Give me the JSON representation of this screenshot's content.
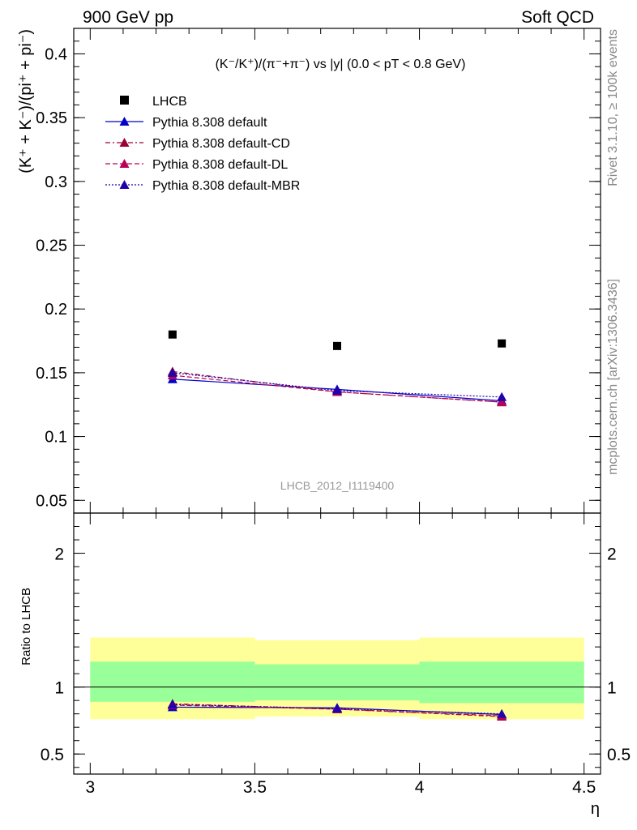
{
  "header": {
    "left": "900 GeV pp",
    "right": "Soft QCD"
  },
  "side_labels": {
    "top": "Rivet 3.1.10, ≥ 100k events",
    "bottom": "mcplots.cern.ch [arXiv:1306.3436]"
  },
  "watermark": "LHCB_2012_I1119400",
  "chart_data": [
    {
      "type": "scatter",
      "panel": "main",
      "title": "(K⁻/K⁺)/(π⁻+π⁻) vs |y| (0.0 < pT < 0.8 GeV)",
      "ylabel": "(K⁺ + K⁻)/(pi⁺ + pi⁻)",
      "xlim": [
        2.95,
        4.55
      ],
      "ylim": [
        0.04,
        0.42
      ],
      "yticks": [
        "0.05",
        "0.1",
        "0.15",
        "0.2",
        "0.25",
        "0.3",
        "0.35",
        "0.4"
      ],
      "x": [
        3.25,
        3.75,
        4.25
      ],
      "series": [
        {
          "name": "LHCB",
          "values": [
            0.18,
            0.171,
            0.173
          ],
          "color": "#000000",
          "marker": "square",
          "line": "none"
        },
        {
          "name": "Pythia 8.308 default",
          "values": [
            0.145,
            0.137,
            0.128
          ],
          "color": "#0000cc",
          "marker": "triangle",
          "line": "solid"
        },
        {
          "name": "Pythia 8.308 default-CD",
          "values": [
            0.151,
            0.135,
            0.127
          ],
          "color": "#990033",
          "marker": "triangle",
          "line": "dashdot"
        },
        {
          "name": "Pythia 8.308 default-DL",
          "values": [
            0.148,
            0.135,
            0.127
          ],
          "color": "#bb0055",
          "marker": "triangle",
          "line": "dashed"
        },
        {
          "name": "Pythia 8.308 default-MBR",
          "values": [
            0.15,
            0.136,
            0.131
          ],
          "color": "#2200aa",
          "marker": "triangle",
          "line": "dotted"
        }
      ],
      "legend_position": "top-left"
    },
    {
      "type": "line",
      "panel": "ratio",
      "ylabel": "Ratio to LHCB",
      "xlabel": "η",
      "xlim": [
        2.95,
        4.55
      ],
      "ylim": [
        0.35,
        2.3
      ],
      "yticks": [
        "0.5",
        "1",
        "2"
      ],
      "xticks": [
        "3",
        "3.5",
        "4",
        "4.5"
      ],
      "bins": [
        [
          3.0,
          3.5
        ],
        [
          3.5,
          4.0
        ],
        [
          4.0,
          4.5
        ]
      ],
      "band_inner": [
        [
          0.89,
          1.19
        ],
        [
          0.9,
          1.17
        ],
        [
          0.88,
          1.19
        ]
      ],
      "band_outer": [
        [
          0.76,
          1.37
        ],
        [
          0.78,
          1.35
        ],
        [
          0.76,
          1.37
        ]
      ],
      "band_inner_color": "#99ff99",
      "band_outer_color": "#ffff99",
      "x": [
        3.25,
        3.75,
        4.25
      ],
      "series": [
        {
          "name": "Pythia 8.308 default",
          "values": [
            0.85,
            0.845,
            0.795
          ],
          "color": "#0000cc",
          "line": "solid"
        },
        {
          "name": "Pythia 8.308 default-CD",
          "values": [
            0.875,
            0.835,
            0.78
          ],
          "color": "#990033",
          "line": "dashdot"
        },
        {
          "name": "Pythia 8.308 default-DL",
          "values": [
            0.865,
            0.835,
            0.785
          ],
          "color": "#bb0055",
          "line": "dashed"
        },
        {
          "name": "Pythia 8.308 default-MBR",
          "values": [
            0.87,
            0.84,
            0.8
          ],
          "color": "#2200aa",
          "line": "dotted"
        }
      ]
    }
  ]
}
